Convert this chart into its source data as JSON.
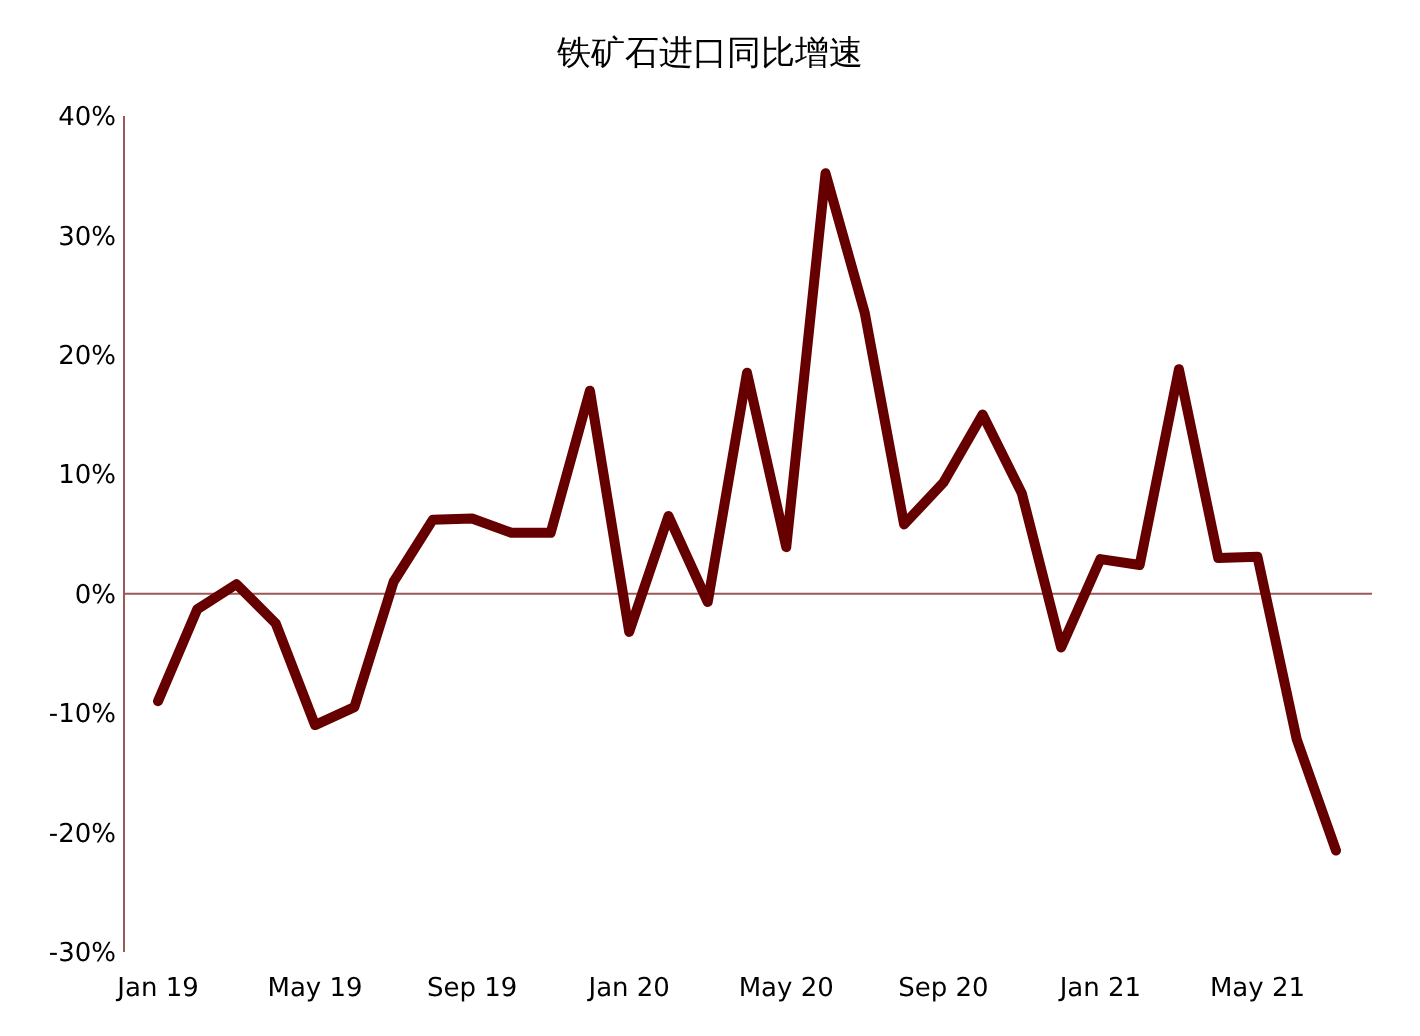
{
  "chart_data": {
    "type": "line",
    "title": "铁矿石进口同比增速",
    "categories": [
      "Jan 19",
      null,
      null,
      null,
      "May 19",
      null,
      null,
      null,
      "Sep 19",
      null,
      null,
      null,
      "Jan 20",
      null,
      null,
      null,
      "May 20",
      null,
      null,
      null,
      "Sep 20",
      null,
      null,
      null,
      "Jan 21",
      null,
      null,
      null,
      "May 21",
      null,
      null
    ],
    "series": [
      {
        "color": "#660000",
        "values": [
          -9,
          -1.3,
          0.8,
          -2.5,
          -11,
          -9.5,
          1,
          6.2,
          6.3,
          5.1,
          5.1,
          17,
          -3.2,
          6.5,
          -0.7,
          18.5,
          3.9,
          35.2,
          23.5,
          5.8,
          9.3,
          15,
          8.4,
          -4.5,
          2.9,
          2.4,
          18.8,
          3,
          3.1,
          -12.2,
          -21.5
        ]
      }
    ],
    "ylim": [
      -30,
      40
    ],
    "yticks": [
      {
        "value": -30,
        "label": "-30%"
      },
      {
        "value": -20,
        "label": "-20%"
      },
      {
        "value": -10,
        "label": "-10%"
      },
      {
        "value": 0,
        "label": "0%"
      },
      {
        "value": 10,
        "label": "10%"
      },
      {
        "value": 20,
        "label": "20%"
      },
      {
        "value": 30,
        "label": "30%"
      },
      {
        "value": 40,
        "label": "40%"
      }
    ],
    "ref_lines": [
      {
        "axis": "y",
        "value": 0,
        "color": "#9a5a5a"
      }
    ],
    "marker": "none",
    "line_style": "solid"
  }
}
